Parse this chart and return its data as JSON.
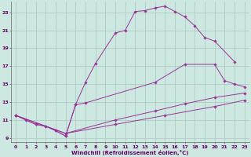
{
  "bg_color": "#cde8e0",
  "grid_color": "#a8c8c0",
  "line_color": "#993399",
  "tick_color": "#660066",
  "xlabel": "Windchill (Refroidissement éolien,°C)",
  "xmin": -0.5,
  "xmax": 23.5,
  "ymin": 8.5,
  "ymax": 24.2,
  "yticks": [
    9,
    11,
    13,
    15,
    17,
    19,
    21,
    23
  ],
  "xticks": [
    0,
    1,
    2,
    3,
    4,
    5,
    6,
    7,
    8,
    9,
    10,
    11,
    12,
    13,
    14,
    15,
    16,
    17,
    18,
    19,
    20,
    21,
    22,
    23
  ],
  "curves": [
    {
      "x": [
        0,
        1,
        2,
        3,
        4,
        5,
        6,
        7,
        8,
        10,
        11,
        12,
        13,
        14,
        15,
        16,
        17,
        18,
        19,
        20,
        22
      ],
      "y": [
        11.5,
        11.0,
        10.5,
        10.3,
        9.8,
        9.2,
        12.7,
        15.2,
        17.3,
        20.7,
        21.0,
        23.1,
        23.2,
        23.5,
        23.7,
        23.1,
        22.5,
        21.5,
        20.2,
        19.8,
        17.5
      ]
    },
    {
      "x": [
        0,
        2,
        3,
        4,
        5,
        6,
        7,
        14,
        17,
        20,
        21,
        22,
        23
      ],
      "y": [
        11.5,
        10.5,
        10.3,
        9.8,
        9.2,
        12.7,
        12.9,
        15.2,
        17.2,
        17.2,
        15.4,
        15.0,
        14.7
      ]
    },
    {
      "x": [
        0,
        5,
        10,
        14,
        17,
        20,
        23
      ],
      "y": [
        11.5,
        9.5,
        11.0,
        12.0,
        12.8,
        13.5,
        14.0
      ]
    },
    {
      "x": [
        0,
        5,
        10,
        15,
        20,
        23
      ],
      "y": [
        11.5,
        9.5,
        10.5,
        11.5,
        12.5,
        13.2
      ]
    }
  ]
}
